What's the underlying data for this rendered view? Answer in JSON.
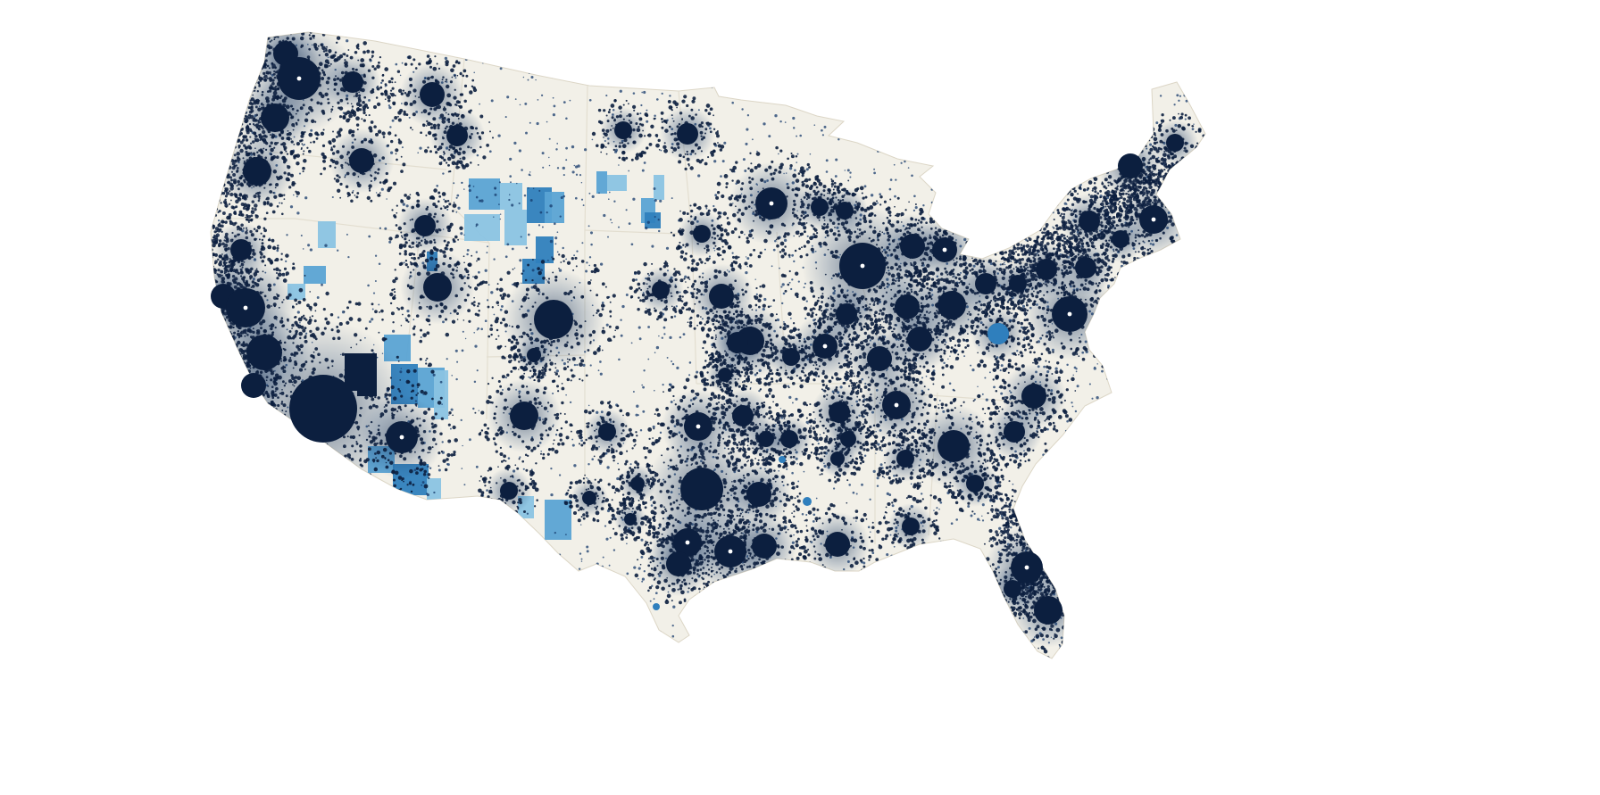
{
  "map": {
    "subject": "contiguous-united-states",
    "style": "dot-density",
    "colors": {
      "background": "#ffffff",
      "land": "#f2f0e8",
      "state_border": "#e3ded0",
      "dot_dark": "#0c1f3f",
      "dot_mid": "#163a6b",
      "highlight_light": "#8ac3e3",
      "highlight_mid": "#5aa3d4",
      "highlight_strong": "#2f7fbd",
      "center_marker": "#ffffff"
    },
    "legend": null,
    "labels": []
  }
}
